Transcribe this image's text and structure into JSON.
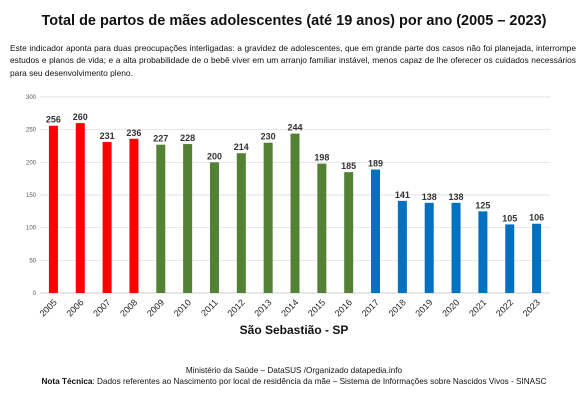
{
  "page": {
    "title": "Total de partos de mães adolescentes (até 19 anos) por ano (2005 – 2023)",
    "description": "Este indicador aponta para duas preocupações interligadas: a gravidez de adolescentes, que em grande parte dos casos não foi planejada, interrompe estudos e planos de vida; e a alta probabilidade de o bebê viver em um arranjo familiar instável, menos capaz de lhe oferecer os cuidados necessários para seu desenvolvimento pleno.",
    "source": "Ministério da Saúde – DataSUS /Organizado datapedia.info",
    "note_label": "Nota Técnica",
    "note_text": ": Dados referentes ao Nascimento por local de residência da mãe – Sistema de Informações sobre Nascidos Vivos - SINASC"
  },
  "chart_data": {
    "type": "bar",
    "title": "São Sebastião - SP",
    "categories": [
      "2005",
      "2006",
      "2007",
      "2008",
      "2009",
      "2010",
      "2011",
      "2012",
      "2013",
      "2014",
      "2015",
      "2016",
      "2017",
      "2018",
      "2019",
      "2020",
      "2021",
      "2022",
      "2023"
    ],
    "values": [
      256,
      260,
      231,
      236,
      227,
      228,
      200,
      214,
      230,
      244,
      198,
      185,
      189,
      141,
      138,
      138,
      125,
      105,
      106
    ],
    "bar_colors": [
      "#ff0000",
      "#ff0000",
      "#ff0000",
      "#ff0000",
      "#548235",
      "#548235",
      "#548235",
      "#548235",
      "#548235",
      "#548235",
      "#548235",
      "#548235",
      "#0070c0",
      "#0070c0",
      "#0070c0",
      "#0070c0",
      "#0070c0",
      "#0070c0",
      "#0070c0"
    ],
    "ylim": [
      0,
      300
    ],
    "yticks": [
      0,
      50,
      100,
      150,
      200,
      250,
      300
    ],
    "grid": true,
    "data_labels": true
  }
}
